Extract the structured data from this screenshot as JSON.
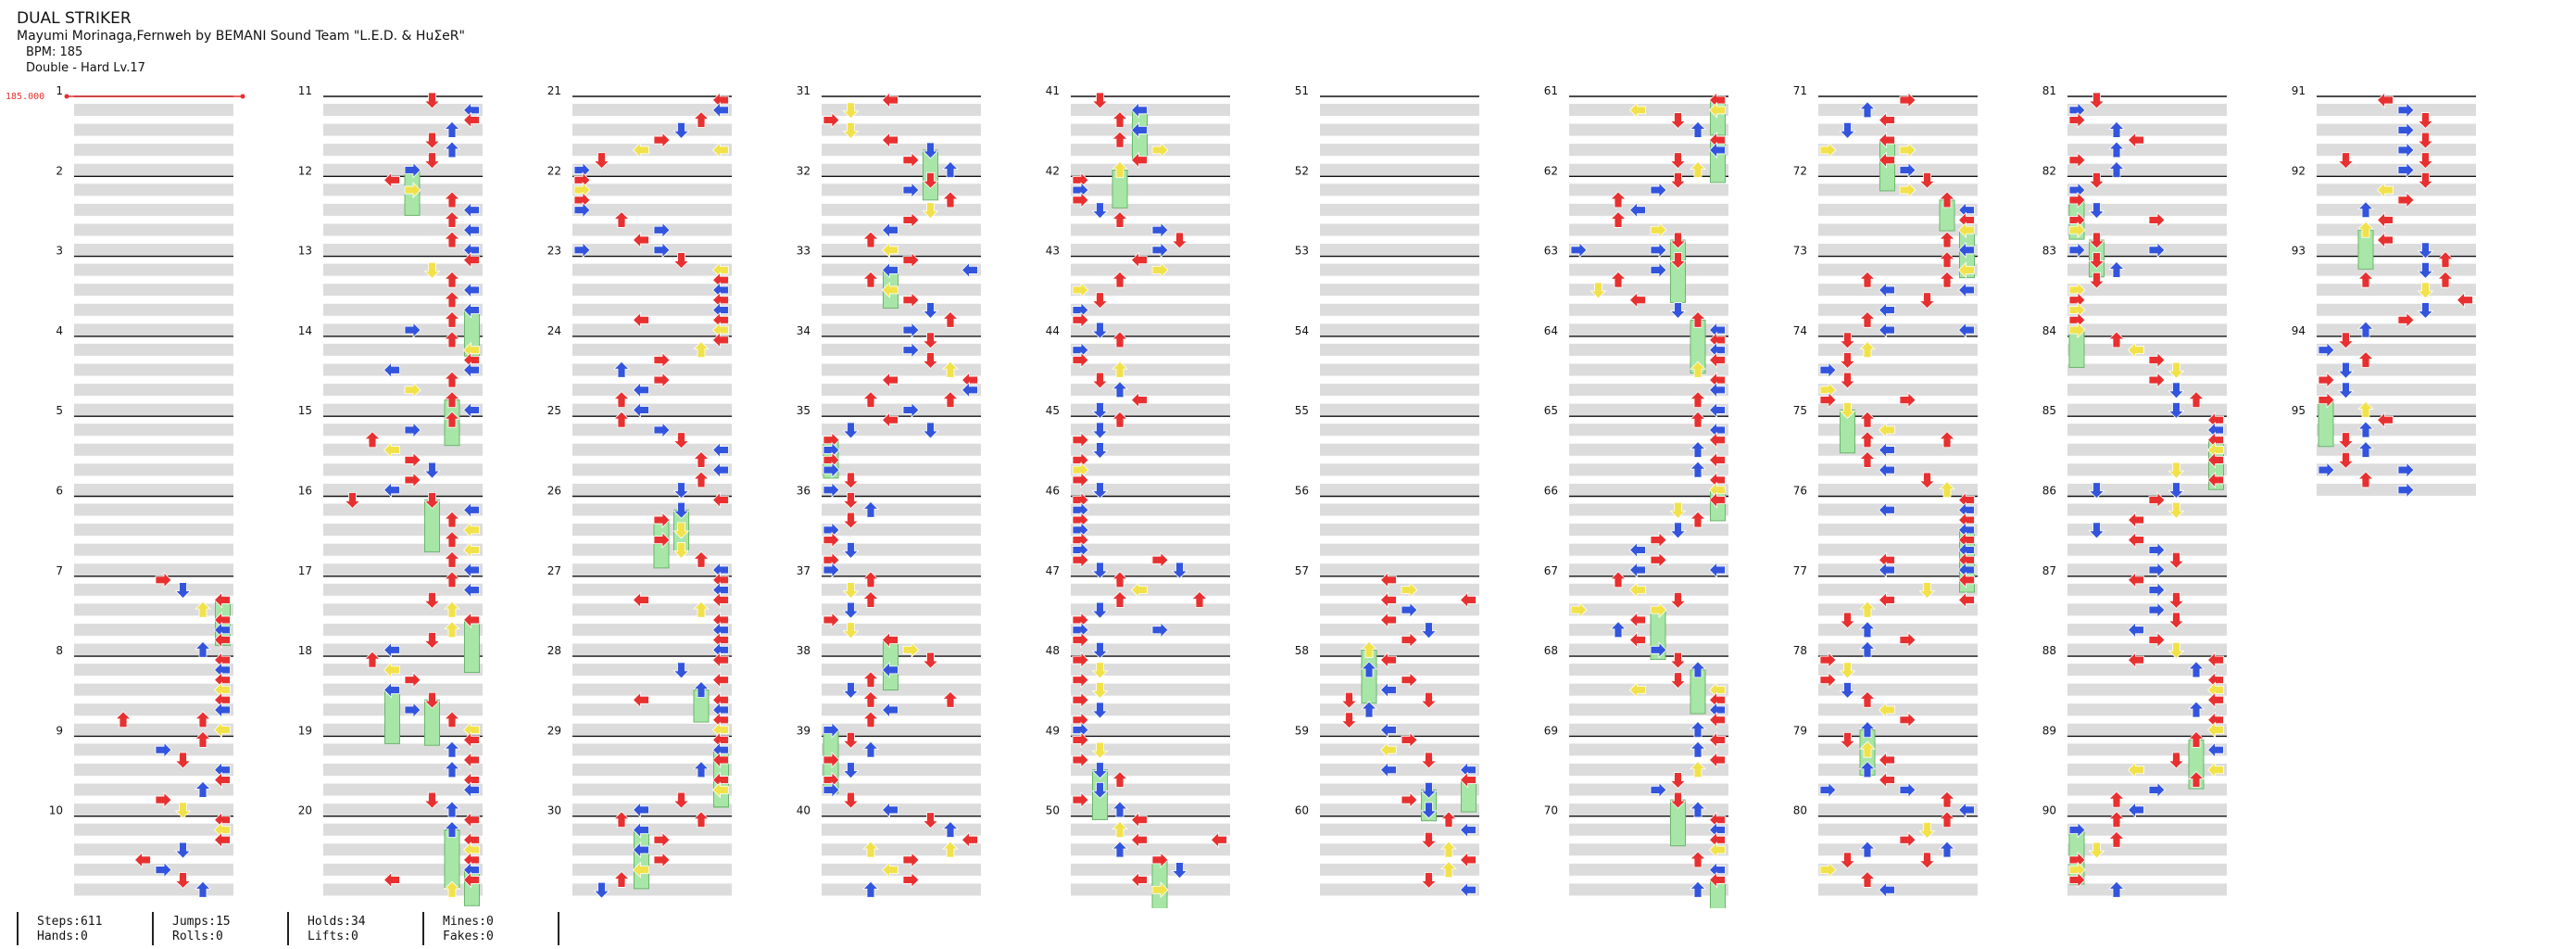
{
  "song": {
    "title": "DUAL STRIKER",
    "artist": "Mayumi Morinaga,Fernweh by BEMANI Sound Team \"L.E.D. & HuΣeR\"",
    "bpm_label": "BPM: 185",
    "difficulty_label": "Double - Hard Lv.17"
  },
  "bpm_marker": {
    "label": "185.000"
  },
  "columns_count": 10,
  "measures_per_column": 10,
  "total_measures": 95,
  "measure_labels": [
    "1",
    "2",
    "3",
    "4",
    "5",
    "6",
    "7",
    "8",
    "9",
    "10",
    "11",
    "12",
    "13",
    "14",
    "15",
    "16",
    "17",
    "18",
    "19",
    "20",
    "21",
    "22",
    "23",
    "24",
    "25",
    "26",
    "27",
    "28",
    "29",
    "30",
    "31",
    "32",
    "33",
    "34",
    "35",
    "36",
    "37",
    "38",
    "39",
    "40",
    "41",
    "42",
    "43",
    "44",
    "45",
    "46",
    "47",
    "48",
    "49",
    "50",
    "51",
    "52",
    "53",
    "54",
    "55",
    "56",
    "57",
    "58",
    "59",
    "60",
    "61",
    "62",
    "63",
    "64",
    "65",
    "66",
    "67",
    "68",
    "69",
    "70",
    "71",
    "72",
    "73",
    "74",
    "75",
    "76",
    "77",
    "78",
    "79",
    "80",
    "81",
    "82",
    "83",
    "84",
    "85",
    "86",
    "87",
    "88",
    "89",
    "90",
    "91",
    "92",
    "93",
    "94",
    "95"
  ],
  "stats": {
    "steps": "Steps:611",
    "hands": "Hands:0",
    "jumps": "Jumps:15",
    "rolls": "Rolls:0",
    "holds": "Holds:34",
    "lifts": "Lifts:0",
    "mines": "Mines:0",
    "fakes": "Fakes:0"
  },
  "colors": {
    "quarter": "#e83030",
    "eighth": "#3355dd",
    "sixteenth": "#f2e24a",
    "hold": "#a8e6a8",
    "special": "#e040e0",
    "beat_band": "#dcdcdc",
    "measure_line": "#111111"
  }
}
